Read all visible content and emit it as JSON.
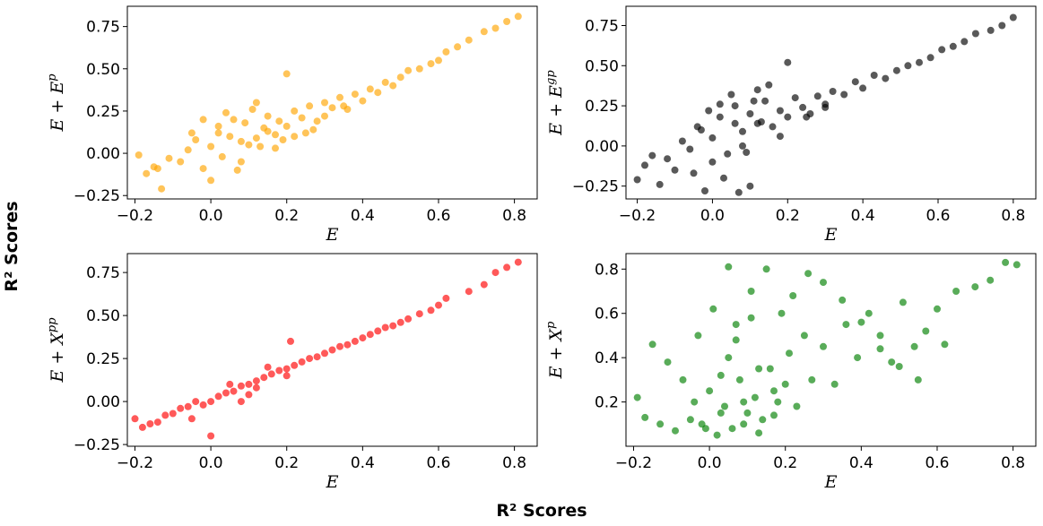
{
  "figure": {
    "supxlabel": "R² Scores",
    "supylabel": "R² Scores"
  },
  "chart_data": [
    {
      "type": "scatter",
      "name": "E_plus_Ep",
      "color": "#FFA500",
      "xlabel": "E",
      "ylabel_base": "E + E",
      "ylabel_sup": "p",
      "xlim": [
        -0.22,
        0.86
      ],
      "ylim": [
        -0.27,
        0.87
      ],
      "xticks": [
        -0.2,
        0.0,
        0.2,
        0.4,
        0.6,
        0.8
      ],
      "xtick_labels": [
        "−0.2",
        "0.0",
        "0.2",
        "0.4",
        "0.6",
        "0.8"
      ],
      "yticks": [
        -0.25,
        0.0,
        0.25,
        0.5,
        0.75
      ],
      "ytick_labels": [
        "−0.25",
        "0.00",
        "0.25",
        "0.50",
        "0.75"
      ],
      "x": [
        -0.19,
        -0.17,
        -0.15,
        -0.13,
        -0.11,
        -0.08,
        -0.06,
        -0.04,
        -0.02,
        0.0,
        0.02,
        0.03,
        0.05,
        0.06,
        0.08,
        0.09,
        0.11,
        0.12,
        0.14,
        0.15,
        0.17,
        0.18,
        0.2,
        0.22,
        0.24,
        0.26,
        0.28,
        0.3,
        0.32,
        0.34,
        0.36,
        0.38,
        0.4,
        0.42,
        0.44,
        0.46,
        0.48,
        0.5,
        0.52,
        0.55,
        0.58,
        0.6,
        0.62,
        0.65,
        0.68,
        0.72,
        0.75,
        0.78,
        0.81,
        -0.14,
        -0.05,
        0.0,
        0.04,
        0.08,
        0.12,
        0.17,
        0.22,
        0.27,
        -0.02,
        0.07,
        0.13,
        0.19,
        0.25,
        0.02,
        0.1,
        0.15,
        0.3,
        0.2,
        0.35
      ],
      "y": [
        -0.01,
        -0.12,
        -0.08,
        -0.21,
        -0.03,
        -0.05,
        0.02,
        0.08,
        -0.09,
        0.04,
        0.12,
        -0.02,
        0.1,
        0.2,
        0.07,
        0.18,
        0.26,
        0.09,
        0.15,
        0.22,
        0.11,
        0.19,
        0.16,
        0.25,
        0.21,
        0.28,
        0.19,
        0.3,
        0.27,
        0.33,
        0.26,
        0.35,
        0.31,
        0.38,
        0.36,
        0.42,
        0.4,
        0.45,
        0.49,
        0.5,
        0.53,
        0.55,
        0.6,
        0.63,
        0.67,
        0.72,
        0.74,
        0.78,
        0.81,
        -0.09,
        0.12,
        -0.16,
        0.24,
        -0.05,
        0.3,
        0.03,
        0.1,
        0.14,
        0.2,
        -0.1,
        0.04,
        0.08,
        0.12,
        0.16,
        0.05,
        0.13,
        0.22,
        0.47,
        0.28
      ]
    },
    {
      "type": "scatter",
      "name": "E_plus_Egp",
      "color": "#000000",
      "xlabel": "E",
      "ylabel_base": "E + E",
      "ylabel_sup": "gp",
      "xlim": [
        -0.23,
        0.86
      ],
      "ylim": [
        -0.33,
        0.87
      ],
      "xticks": [
        -0.2,
        0.0,
        0.2,
        0.4,
        0.6,
        0.8
      ],
      "xtick_labels": [
        "−0.2",
        "0.0",
        "0.2",
        "0.4",
        "0.6",
        "0.8"
      ],
      "yticks": [
        -0.25,
        0.0,
        0.25,
        0.5,
        0.75
      ],
      "ytick_labels": [
        "−0.25",
        "0.00",
        "0.25",
        "0.50",
        "0.75"
      ],
      "x": [
        -0.2,
        -0.18,
        -0.16,
        -0.14,
        -0.12,
        -0.1,
        -0.08,
        -0.06,
        -0.04,
        -0.02,
        0.0,
        0.02,
        0.04,
        0.06,
        0.08,
        0.1,
        0.12,
        0.14,
        0.16,
        0.18,
        0.2,
        0.22,
        0.24,
        0.26,
        0.28,
        0.3,
        0.32,
        0.35,
        0.38,
        0.4,
        0.43,
        0.46,
        0.49,
        0.52,
        0.55,
        0.58,
        0.61,
        0.64,
        0.67,
        0.7,
        0.74,
        0.77,
        0.8,
        -0.03,
        0.03,
        0.08,
        0.13,
        0.18,
        0.05,
        0.0,
        -0.01,
        0.1,
        0.15,
        0.2,
        0.07,
        0.02,
        0.11,
        0.25,
        0.3,
        0.12,
        -0.05,
        0.06,
        0.09
      ],
      "y": [
        -0.21,
        -0.12,
        -0.06,
        -0.24,
        -0.08,
        -0.15,
        0.03,
        -0.02,
        0.12,
        -0.28,
        0.05,
        0.18,
        -0.05,
        0.25,
        0.09,
        0.2,
        0.14,
        0.28,
        0.12,
        0.22,
        0.18,
        0.3,
        0.24,
        0.2,
        0.31,
        0.26,
        0.34,
        0.32,
        0.4,
        0.36,
        0.44,
        0.42,
        0.47,
        0.5,
        0.52,
        0.55,
        0.6,
        0.62,
        0.65,
        0.7,
        0.72,
        0.75,
        0.8,
        0.1,
        -0.2,
        0.0,
        0.15,
        0.06,
        0.32,
        -0.1,
        0.22,
        -0.25,
        0.38,
        0.52,
        -0.29,
        0.26,
        0.28,
        0.18,
        0.24,
        0.35,
        -0.17,
        0.14,
        -0.04
      ]
    },
    {
      "type": "scatter",
      "name": "E_plus_Xpp",
      "color": "#FF0000",
      "xlabel": "E",
      "ylabel_base": "E + X",
      "ylabel_sup": "pp",
      "xlim": [
        -0.22,
        0.86
      ],
      "ylim": [
        -0.26,
        0.86
      ],
      "xticks": [
        -0.2,
        0.0,
        0.2,
        0.4,
        0.6,
        0.8
      ],
      "xtick_labels": [
        "−0.2",
        "0.0",
        "0.2",
        "0.4",
        "0.6",
        "0.8"
      ],
      "yticks": [
        -0.25,
        0.0,
        0.25,
        0.5,
        0.75
      ],
      "ytick_labels": [
        "−0.25",
        "0.00",
        "0.25",
        "0.50",
        "0.75"
      ],
      "x": [
        -0.2,
        -0.18,
        -0.16,
        -0.14,
        -0.12,
        -0.1,
        -0.08,
        -0.06,
        -0.04,
        -0.02,
        0.0,
        0.02,
        0.04,
        0.06,
        0.08,
        0.1,
        0.12,
        0.14,
        0.16,
        0.18,
        0.2,
        0.22,
        0.24,
        0.26,
        0.28,
        0.3,
        0.32,
        0.34,
        0.36,
        0.38,
        0.4,
        0.42,
        0.44,
        0.46,
        0.48,
        0.5,
        0.52,
        0.55,
        0.58,
        0.6,
        0.62,
        0.68,
        0.72,
        0.75,
        0.78,
        0.81,
        0.0,
        0.05,
        0.1,
        0.15,
        0.2,
        -0.05,
        0.08,
        0.12,
        0.21
      ],
      "y": [
        -0.1,
        -0.15,
        -0.13,
        -0.12,
        -0.08,
        -0.07,
        -0.04,
        -0.03,
        0.0,
        -0.02,
        0.0,
        0.03,
        0.05,
        0.06,
        0.09,
        0.1,
        0.12,
        0.14,
        0.16,
        0.18,
        0.19,
        0.21,
        0.23,
        0.25,
        0.26,
        0.28,
        0.3,
        0.32,
        0.33,
        0.35,
        0.37,
        0.39,
        0.41,
        0.43,
        0.44,
        0.46,
        0.48,
        0.51,
        0.53,
        0.56,
        0.6,
        0.64,
        0.68,
        0.75,
        0.78,
        0.81,
        -0.2,
        0.1,
        0.04,
        0.2,
        0.15,
        -0.1,
        0.0,
        0.08,
        0.35
      ]
    },
    {
      "type": "scatter",
      "name": "E_plus_Xp",
      "color": "#008000",
      "xlabel": "E",
      "ylabel_base": "E + X",
      "ylabel_sup": "p",
      "xlim": [
        -0.22,
        0.86
      ],
      "ylim": [
        0.0,
        0.87
      ],
      "xticks": [
        -0.2,
        0.0,
        0.2,
        0.4,
        0.6,
        0.8
      ],
      "xtick_labels": [
        "−0.2",
        "0.0",
        "0.2",
        "0.4",
        "0.6",
        "0.8"
      ],
      "yticks": [
        0.2,
        0.4,
        0.6,
        0.8
      ],
      "ytick_labels": [
        "0.2",
        "0.4",
        "0.6",
        "0.8"
      ],
      "x": [
        -0.19,
        -0.17,
        -0.15,
        -0.13,
        -0.11,
        -0.09,
        -0.07,
        -0.05,
        -0.03,
        -0.01,
        0.01,
        0.03,
        0.05,
        0.07,
        0.09,
        0.11,
        0.13,
        0.15,
        0.17,
        0.19,
        0.21,
        0.23,
        0.25,
        0.27,
        0.3,
        0.33,
        0.36,
        0.39,
        0.42,
        0.45,
        0.48,
        0.51,
        0.54,
        0.57,
        0.6,
        0.65,
        0.7,
        0.74,
        0.78,
        0.81,
        -0.02,
        0.02,
        0.06,
        0.1,
        0.14,
        0.18,
        0.0,
        0.04,
        0.08,
        0.12,
        0.16,
        0.2,
        0.05,
        0.09,
        0.13,
        0.17,
        -0.04,
        0.03,
        0.07,
        0.11,
        0.22,
        0.26,
        0.3,
        0.35,
        0.4,
        0.45,
        0.5,
        0.55,
        0.62
      ],
      "y": [
        0.22,
        0.13,
        0.46,
        0.1,
        0.38,
        0.07,
        0.3,
        0.12,
        0.5,
        0.08,
        0.62,
        0.15,
        0.81,
        0.55,
        0.2,
        0.7,
        0.35,
        0.8,
        0.25,
        0.6,
        0.42,
        0.18,
        0.5,
        0.3,
        0.45,
        0.28,
        0.55,
        0.4,
        0.6,
        0.5,
        0.38,
        0.65,
        0.45,
        0.52,
        0.62,
        0.7,
        0.72,
        0.75,
        0.83,
        0.82,
        0.1,
        0.05,
        0.08,
        0.15,
        0.12,
        0.2,
        0.25,
        0.18,
        0.3,
        0.22,
        0.35,
        0.28,
        0.4,
        0.1,
        0.06,
        0.14,
        0.2,
        0.32,
        0.48,
        0.58,
        0.68,
        0.78,
        0.74,
        0.66,
        0.56,
        0.44,
        0.36,
        0.3,
        0.46
      ]
    }
  ]
}
